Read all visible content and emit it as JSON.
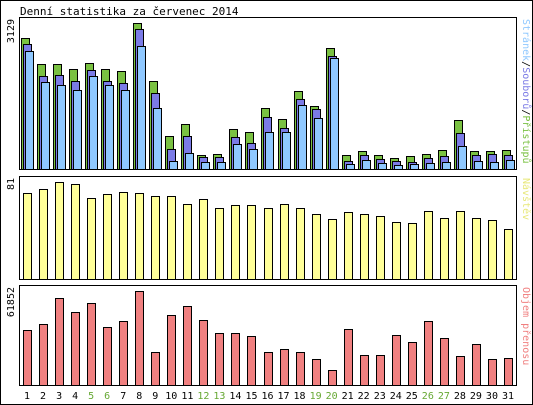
{
  "chart_data": {
    "type": "bar",
    "title": "Denní statistika za červenec 2014",
    "categories": [
      "1",
      "2",
      "3",
      "4",
      "5",
      "6",
      "7",
      "8",
      "9",
      "10",
      "11",
      "12",
      "13",
      "14",
      "15",
      "16",
      "17",
      "18",
      "19",
      "20",
      "21",
      "22",
      "23",
      "24",
      "25",
      "26",
      "27",
      "28",
      "29",
      "30",
      "31"
    ],
    "weekend_days": [
      "5",
      "6",
      "12",
      "13",
      "19",
      "20",
      "26",
      "27"
    ],
    "colors": {
      "pristupu": "#7ac142",
      "souboru": "#7b7be6",
      "stranek": "#8fc8ff",
      "navstev": "#ffff99",
      "objem": "#f08080",
      "weekday_label": "#000000",
      "weekend_label": "#66a833",
      "legend_navstev": "#e8e87a",
      "legend_objem": "#f08080"
    },
    "panels": [
      {
        "id": "hits",
        "ymax_label": "3129",
        "ylim": [
          0,
          3129
        ],
        "legend": [
          {
            "text": "Stránek",
            "color": "#8fc8ff"
          },
          {
            "text": "/",
            "color": "#000000"
          },
          {
            "text": "Souborů",
            "color": "#7b7be6"
          },
          {
            "text": "/",
            "color": "#000000"
          },
          {
            "text": "Přístupů",
            "color": "#7ac142"
          }
        ],
        "series": [
          {
            "name": "Přístupů",
            "values": [
              2800,
              2250,
              2250,
              2150,
              2270,
              2150,
              2100,
              3129,
              1880,
              700,
              960,
              310,
              330,
              860,
              800,
              1310,
              1080,
              1670,
              1350,
              2600,
              300,
              390,
              300,
              240,
              280,
              330,
              400,
              1060,
              390,
              390,
              410
            ]
          },
          {
            "name": "Souborů",
            "values": [
              2670,
              2000,
              2020,
              1890,
              2130,
              1880,
              1850,
              2990,
              1620,
              420,
              700,
              260,
              260,
              680,
              560,
              1120,
              880,
              1500,
              1280,
              2430,
              180,
              290,
              220,
              180,
              160,
              230,
              270,
              770,
              290,
              330,
              310
            ]
          },
          {
            "name": "Stránek",
            "values": [
              2530,
              1860,
              1800,
              1700,
              2000,
              1800,
              1700,
              2630,
              1300,
              170,
              350,
              150,
              160,
              530,
              430,
              800,
              790,
              1380,
              1100,
              2380,
              110,
              200,
              130,
              80,
              100,
              130,
              150,
              500,
              180,
              160,
              200
            ]
          }
        ]
      },
      {
        "id": "visits",
        "ymax_label": "81",
        "ylim": [
          0,
          81
        ],
        "legend": [
          {
            "text": "Návštěv",
            "color": "#e8e87a"
          }
        ],
        "series": [
          {
            "name": "Návštěv",
            "values": [
              72,
              75,
              81,
              79,
              68,
              71,
              73,
              72,
              69,
              69,
              63,
              67,
              59,
              62,
              62,
              59,
              63,
              59,
              54,
              50,
              56,
              54,
              53,
              48,
              47,
              57,
              51,
              57,
              51,
              49,
              42
            ]
          }
        ]
      },
      {
        "id": "bytes",
        "ymax_label": "61852",
        "ylim": [
          0,
          61852
        ],
        "legend": [
          {
            "text": "Objem přenosu",
            "color": "#f08080"
          }
        ],
        "series": [
          {
            "name": "Objem přenosu",
            "values": [
              36000,
              40000,
              57000,
              48000,
              54000,
              38000,
              42000,
              61852,
              22000,
              46000,
              52000,
              43000,
              34000,
              34000,
              32000,
              22000,
              24000,
              22000,
              17000,
              10000,
              37000,
              20000,
              20000,
              33000,
              28000,
              42000,
              31000,
              19000,
              27000,
              17000,
              18000
            ]
          }
        ]
      }
    ]
  }
}
